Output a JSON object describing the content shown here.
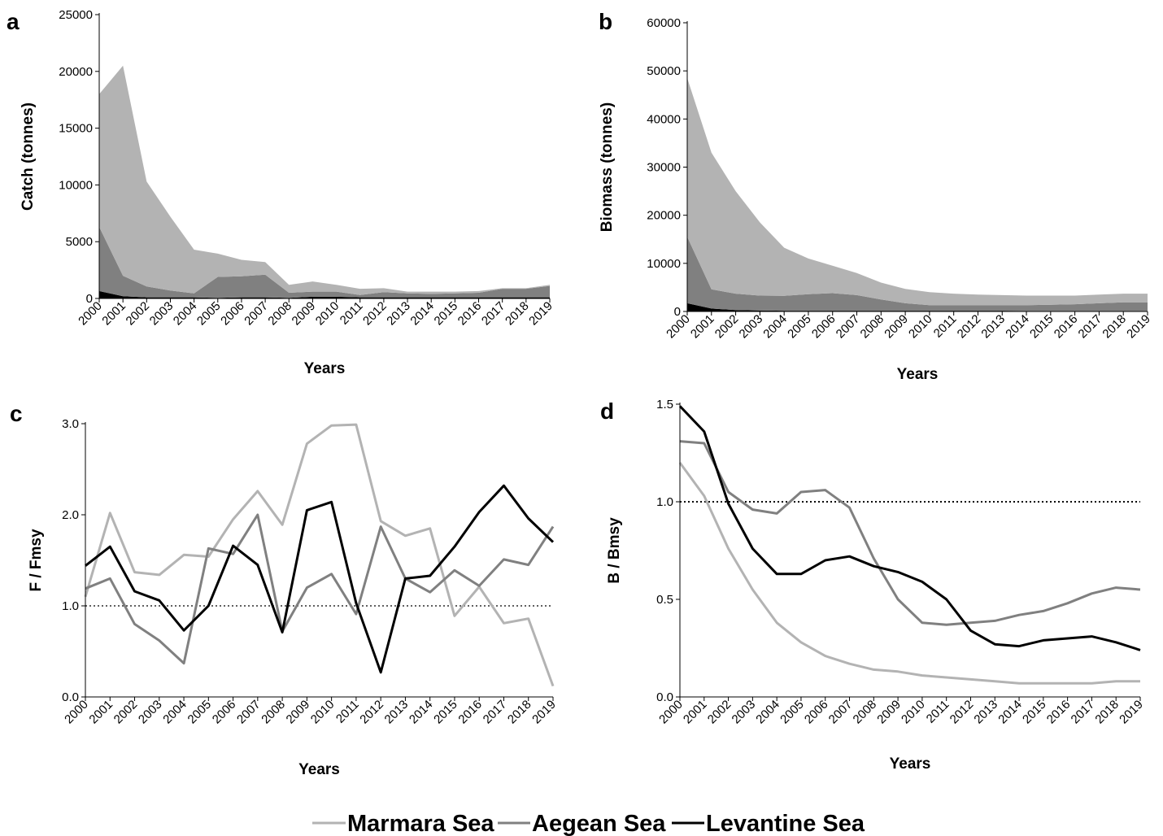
{
  "legend": [
    {
      "label": "Marmara Sea",
      "color": "#b3b3b3"
    },
    {
      "label": "Aegean Sea",
      "color": "#808080"
    },
    {
      "label": "Levantine Sea",
      "color": "#000000"
    }
  ],
  "chart_data": [
    {
      "panel": "a",
      "type": "area",
      "stacked": true,
      "xlabel": "Years",
      "ylabel": "Catch (tonnes)",
      "ylim": [
        0,
        25000
      ],
      "yticks": [
        0,
        5000,
        10000,
        15000,
        20000,
        25000
      ],
      "ytick_labels": [
        "0",
        "5000",
        "10000",
        "15000",
        "20000",
        "25000"
      ],
      "categories": [
        "2000",
        "2001",
        "2002",
        "2003",
        "2004",
        "2005",
        "2006",
        "2007",
        "2008",
        "2009",
        "2010",
        "2011",
        "2012",
        "2013",
        "2014",
        "2015",
        "2016",
        "2017",
        "2018",
        "2019"
      ],
      "series": [
        {
          "name": "Levantine Sea",
          "color": "#000000",
          "values": [
            650,
            200,
            100,
            100,
            100,
            50,
            100,
            100,
            50,
            150,
            150,
            100,
            100,
            100,
            100,
            100,
            100,
            100,
            100,
            100
          ]
        },
        {
          "name": "Aegean Sea",
          "color": "#808080",
          "values": [
            5650,
            1800,
            950,
            600,
            350,
            1850,
            1850,
            2000,
            450,
            450,
            450,
            200,
            450,
            350,
            300,
            350,
            400,
            750,
            750,
            1000
          ]
        },
        {
          "name": "Marmara Sea",
          "color": "#b3b3b3",
          "values": [
            11700,
            18500,
            9250,
            6500,
            3850,
            2050,
            1450,
            1100,
            700,
            900,
            600,
            550,
            350,
            150,
            200,
            150,
            150,
            50,
            50,
            100
          ]
        }
      ]
    },
    {
      "panel": "b",
      "type": "area",
      "stacked": true,
      "xlabel": "Years",
      "ylabel": "Biomass (tonnes)",
      "ylim": [
        0,
        60000
      ],
      "yticks": [
        0,
        10000,
        20000,
        30000,
        40000,
        50000,
        60000
      ],
      "ytick_labels": [
        "0",
        "10000",
        "20000",
        "30000",
        "40000",
        "50000",
        "60000"
      ],
      "categories": [
        "2000",
        "2001",
        "2002",
        "2003",
        "2004",
        "2005",
        "2006",
        "2007",
        "2008",
        "2009",
        "2010",
        "2011",
        "2012",
        "2013",
        "2014",
        "2015",
        "2016",
        "2017",
        "2018",
        "2019"
      ],
      "series": [
        {
          "name": "Levantine Sea",
          "color": "#000000",
          "values": [
            1700,
            600,
            300,
            200,
            150,
            150,
            150,
            150,
            150,
            150,
            150,
            150,
            150,
            150,
            100,
            100,
            100,
            100,
            100,
            100
          ]
        },
        {
          "name": "Aegean Sea",
          "color": "#808080",
          "values": [
            13800,
            4000,
            3400,
            3100,
            3100,
            3450,
            3650,
            3250,
            2350,
            1550,
            1150,
            1150,
            1150,
            1150,
            1200,
            1300,
            1400,
            1600,
            1800,
            1800
          ]
        },
        {
          "name": "Marmara Sea",
          "color": "#b3b3b3",
          "values": [
            33000,
            28400,
            21300,
            15200,
            10000,
            7400,
            5700,
            4600,
            3500,
            3000,
            2700,
            2400,
            2200,
            2100,
            2000,
            1900,
            1800,
            1800,
            1800,
            1800
          ]
        }
      ]
    },
    {
      "panel": "c",
      "type": "line",
      "xlabel": "Years",
      "ylabel": "F / Fmsy",
      "ylim": [
        0,
        3
      ],
      "yticks": [
        0,
        1,
        2,
        3
      ],
      "ytick_labels": [
        "0.0",
        "1.0",
        "2.0",
        "3.0"
      ],
      "reference_line": 1.0,
      "categories": [
        "2000",
        "2001",
        "2002",
        "2003",
        "2004",
        "2005",
        "2006",
        "2007",
        "2008",
        "2009",
        "2010",
        "2011",
        "2012",
        "2013",
        "2014",
        "2015",
        "2016",
        "2017",
        "2018",
        "2019"
      ],
      "series": [
        {
          "name": "Marmara Sea",
          "color": "#b3b3b3",
          "values": [
            1.1,
            2.02,
            1.37,
            1.34,
            1.56,
            1.54,
            1.95,
            2.26,
            1.89,
            2.78,
            2.98,
            2.99,
            1.93,
            1.77,
            1.85,
            0.89,
            1.21,
            0.81,
            0.86,
            0.12
          ]
        },
        {
          "name": "Aegean Sea",
          "color": "#808080",
          "values": [
            1.19,
            1.3,
            0.8,
            0.62,
            0.37,
            1.63,
            1.57,
            2.0,
            0.72,
            1.2,
            1.35,
            0.91,
            1.87,
            1.3,
            1.15,
            1.39,
            1.22,
            1.51,
            1.45,
            1.87
          ]
        },
        {
          "name": "Levantine Sea",
          "color": "#000000",
          "values": [
            1.44,
            1.65,
            1.16,
            1.06,
            0.73,
            1.0,
            1.66,
            1.45,
            0.71,
            2.05,
            2.14,
            1.03,
            0.27,
            1.3,
            1.33,
            1.65,
            2.03,
            2.32,
            1.96,
            1.7
          ]
        }
      ]
    },
    {
      "panel": "d",
      "type": "line",
      "xlabel": "Years",
      "ylabel": "B / Bmsy",
      "ylim": [
        0,
        1.5
      ],
      "yticks": [
        0,
        0.5,
        1.0,
        1.5
      ],
      "ytick_labels": [
        "0.0",
        "0.5",
        "1.0",
        "1.5"
      ],
      "reference_line": 1.0,
      "categories": [
        "2000",
        "2001",
        "2002",
        "2003",
        "2004",
        "2005",
        "2006",
        "2007",
        "2008",
        "2009",
        "2010",
        "2011",
        "2012",
        "2013",
        "2014",
        "2015",
        "2016",
        "2017",
        "2018",
        "2019"
      ],
      "series": [
        {
          "name": "Marmara Sea",
          "color": "#b3b3b3",
          "values": [
            1.2,
            1.03,
            0.76,
            0.55,
            0.38,
            0.28,
            0.21,
            0.17,
            0.14,
            0.13,
            0.11,
            0.1,
            0.09,
            0.08,
            0.07,
            0.07,
            0.07,
            0.07,
            0.08,
            0.08
          ]
        },
        {
          "name": "Aegean Sea",
          "color": "#808080",
          "values": [
            1.31,
            1.3,
            1.05,
            0.96,
            0.94,
            1.05,
            1.06,
            0.97,
            0.71,
            0.5,
            0.38,
            0.37,
            0.38,
            0.39,
            0.42,
            0.44,
            0.48,
            0.53,
            0.56,
            0.55
          ]
        },
        {
          "name": "Levantine Sea",
          "color": "#000000",
          "values": [
            1.49,
            1.36,
            0.99,
            0.76,
            0.63,
            0.63,
            0.7,
            0.72,
            0.67,
            0.64,
            0.59,
            0.5,
            0.34,
            0.27,
            0.26,
            0.29,
            0.3,
            0.31,
            0.28,
            0.24
          ]
        }
      ]
    }
  ]
}
